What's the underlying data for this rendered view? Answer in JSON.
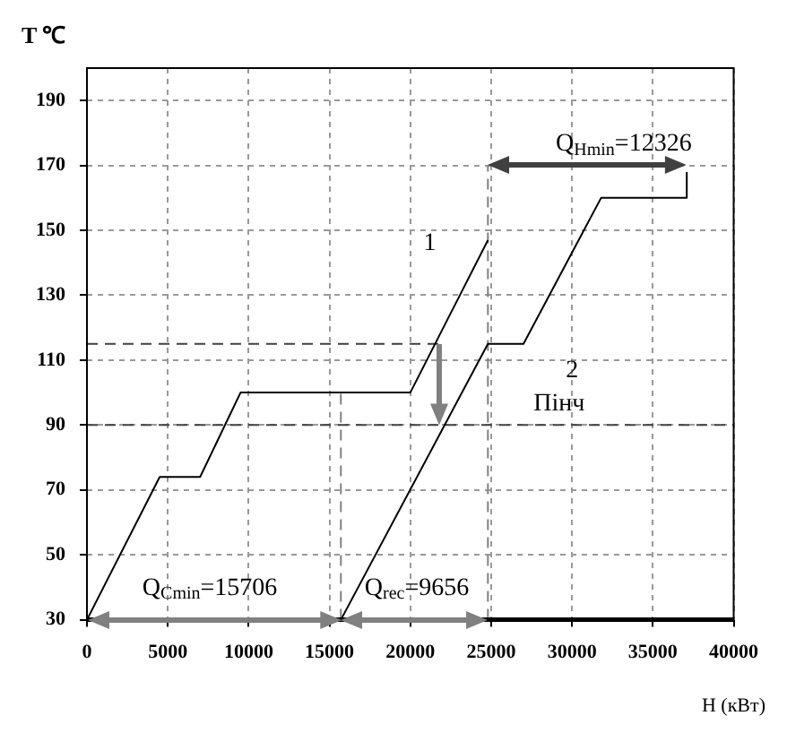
{
  "chart_data": {
    "type": "line",
    "xlabel": "H (кВт)",
    "ylabel": "T ℃",
    "xlim": [
      0,
      40000
    ],
    "xticks": [
      0,
      5000,
      10000,
      15000,
      20000,
      25000,
      30000,
      35000,
      40000
    ],
    "ylim": [
      30,
      200
    ],
    "yticks": [
      30,
      50,
      70,
      90,
      110,
      130,
      150,
      170,
      190
    ],
    "grid": true,
    "legend": false,
    "marker": "none",
    "line_style": "solid",
    "series": [
      {
        "color": "#000000",
        "x": [
          0,
          4500,
          7000,
          9500,
          20000,
          24800
        ],
        "values": [
          30,
          74,
          74,
          100,
          100,
          147
        ]
      },
      {
        "color": "#000000",
        "x": [
          15706,
          24800,
          27000,
          31800,
          37100,
          37100
        ],
        "values": [
          30,
          115,
          115,
          160,
          160,
          168
        ]
      },
      {
        "color": "#404040",
        "line_style": "dashed",
        "x": [
          0,
          21800
        ],
        "values": [
          115,
          115
        ]
      },
      {
        "color": "#808080",
        "line_style": "dashed",
        "x": [
          15706,
          15706
        ],
        "values": [
          30,
          100
        ]
      },
      {
        "color": "#808080",
        "line_style": "dashed",
        "x": [
          24800,
          24800
        ],
        "values": [
          30,
          170
        ]
      }
    ],
    "ref_lines": [
      {
        "axis": "y",
        "value": 90,
        "color": "#404040",
        "line_style": "dashed"
      }
    ],
    "annotations": [
      "1",
      "2",
      "Пінч",
      "Q$_{Cmin}$=15706",
      "Q$_{rec}$=9656",
      "Q$_{Hmin}$=12326"
    ]
  }
}
